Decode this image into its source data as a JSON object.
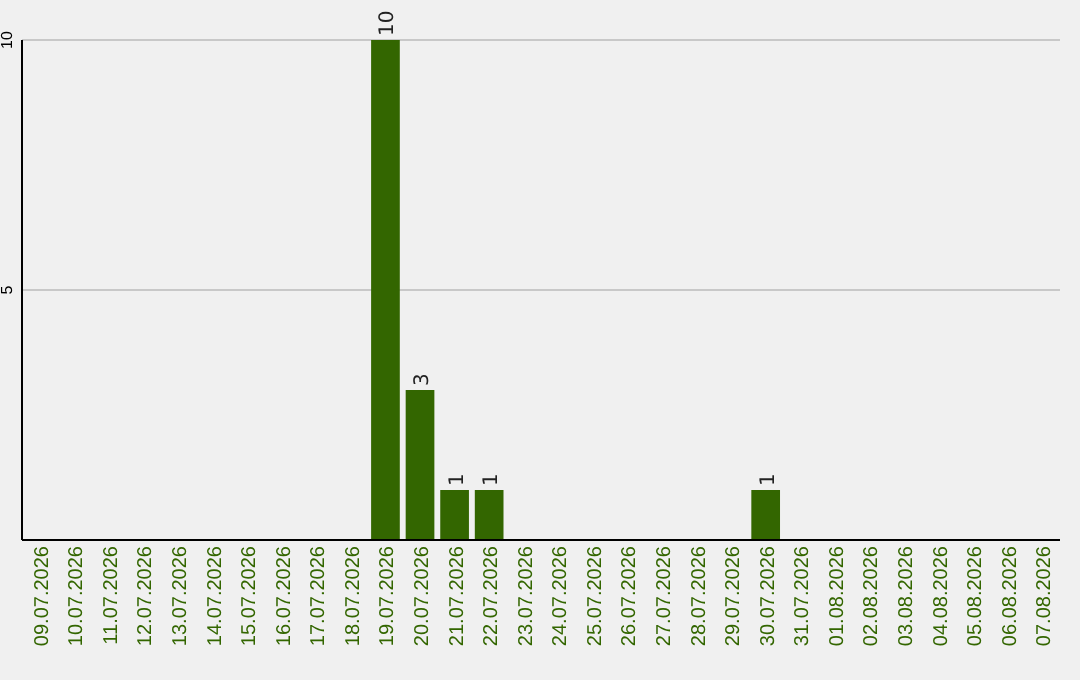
{
  "chart_data": {
    "type": "bar",
    "categories": [
      "09.07.2026",
      "10.07.2026",
      "11.07.2026",
      "12.07.2026",
      "13.07.2026",
      "14.07.2026",
      "15.07.2026",
      "16.07.2026",
      "17.07.2026",
      "18.07.2026",
      "19.07.2026",
      "20.07.2026",
      "21.07.2026",
      "22.07.2026",
      "23.07.2026",
      "24.07.2026",
      "25.07.2026",
      "26.07.2026",
      "27.07.2026",
      "28.07.2026",
      "29.07.2026",
      "30.07.2026",
      "31.07.2026",
      "01.08.2026",
      "02.08.2026",
      "03.08.2026",
      "04.08.2026",
      "05.08.2026",
      "06.08.2026",
      "07.08.2026"
    ],
    "values": [
      0,
      0,
      0,
      0,
      0,
      0,
      0,
      0,
      0,
      0,
      10,
      3,
      1,
      1,
      0,
      0,
      0,
      0,
      0,
      0,
      0,
      1,
      0,
      0,
      0,
      0,
      0,
      0,
      0,
      0
    ],
    "value_labels": [
      null,
      null,
      null,
      null,
      null,
      null,
      null,
      null,
      null,
      null,
      "10",
      "3",
      "1",
      "1",
      null,
      null,
      null,
      null,
      null,
      null,
      null,
      "1",
      null,
      null,
      null,
      null,
      null,
      null,
      null,
      null
    ],
    "color": "#336600",
    "ylim": [
      0,
      10
    ],
    "yticks": [
      5,
      10
    ],
    "grid": "y"
  }
}
